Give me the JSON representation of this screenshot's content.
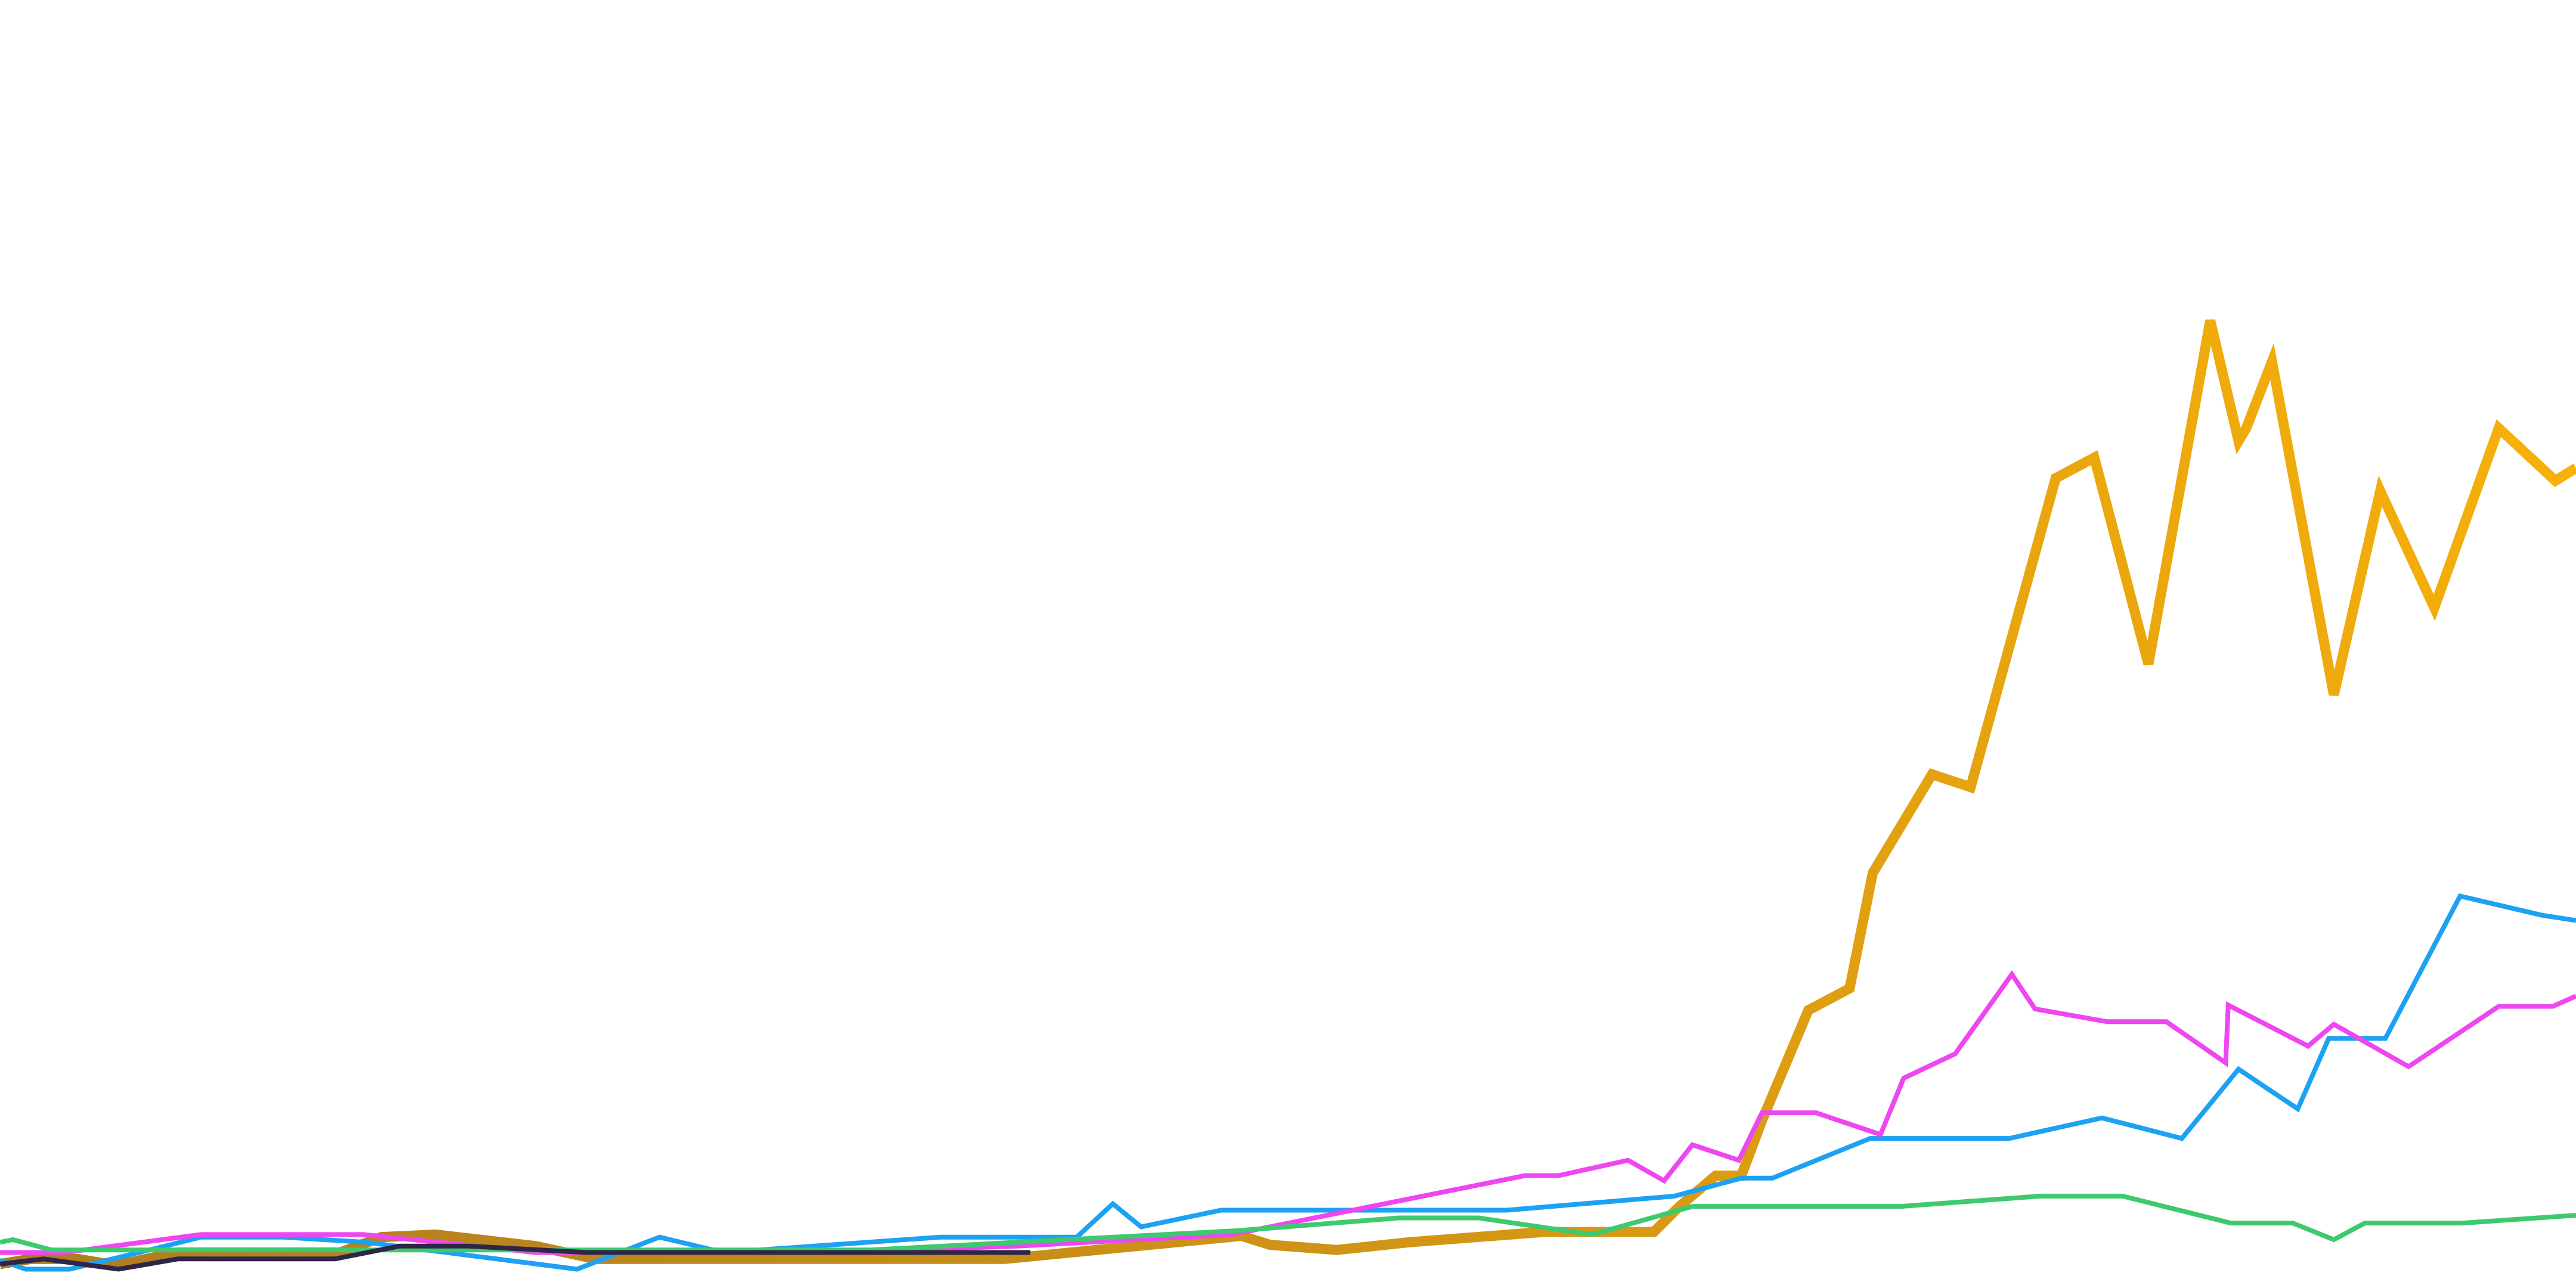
{
  "chart_data": {
    "type": "line",
    "xlim": [
      0,
      100
    ],
    "ylim": [
      0,
      100
    ],
    "grid": false,
    "legend": "none",
    "series": [
      {
        "color": "#ad7b22",
        "gradient_to": "#f9b208",
        "width": "thick",
        "x": [
          0,
          1.2,
          3.0,
          4.5,
          6.9,
          13.2,
          14.8,
          16.9,
          20.8,
          23.1,
          30.0,
          39.0,
          48.2,
          49.3,
          51.9,
          54.7,
          59.9,
          64.2,
          65.2,
          66.6,
          67.6,
          68.4,
          70.2,
          71.8,
          72.7,
          75.0,
          76.5,
          79.8,
          81.3,
          83.4,
          85.8,
          86.9,
          87.2,
          88.2,
          90.6,
          92.4,
          94.5,
          97.0,
          99.2,
          100
        ],
        "y": [
          1.4,
          1.8,
          1.8,
          1.3,
          2.3,
          2.3,
          3.5,
          3.7,
          2.8,
          1.8,
          1.8,
          1.8,
          3.6,
          2.9,
          2.5,
          3.1,
          3.9,
          3.9,
          5.9,
          8.3,
          8.3,
          12.6,
          21.2,
          22.9,
          31.9,
          39.6,
          38.6,
          62.7,
          64.3,
          48.2,
          75.0,
          65.6,
          66.6,
          71.8,
          45.8,
          61.7,
          52.6,
          66.6,
          62.5,
          63.5
        ]
      },
      {
        "color": "#1da1f2",
        "width": "normal",
        "x": [
          0,
          1.0,
          2.7,
          5.4,
          7.8,
          11.0,
          14.2,
          22.4,
          25.6,
          28.1,
          36.5,
          41.8,
          43.2,
          44.3,
          47.4,
          58.5,
          65.0,
          67.6,
          68.8,
          72.6,
          78.0,
          81.6,
          84.7,
          86.9,
          89.2,
          90.4,
          92.6,
          95.5,
          98.7,
          100
        ],
        "y": [
          1.7,
          1.0,
          1.0,
          2.3,
          3.5,
          3.5,
          3.1,
          1.0,
          3.5,
          2.3,
          3.5,
          3.5,
          6.1,
          4.3,
          5.6,
          5.6,
          6.7,
          8.1,
          8.1,
          11.2,
          11.2,
          12.8,
          11.2,
          16.6,
          13.5,
          19.0,
          19.0,
          30.1,
          28.6,
          28.2
        ]
      },
      {
        "color": "#ee46f0",
        "width": "normal",
        "x": [
          0,
          2.5,
          7.8,
          14.1,
          20.8,
          32.0,
          39.5,
          47.8,
          59.2,
          60.5,
          63.2,
          64.6,
          65.7,
          67.5,
          68.4,
          70.5,
          73.0,
          73.9,
          75.9,
          78.1,
          79.0,
          81.8,
          84.1,
          86.4,
          86.5,
          89.6,
          90.6,
          93.5,
          97.0,
          99.1,
          100
        ],
        "y": [
          2.3,
          2.3,
          3.7,
          3.7,
          2.3,
          2.3,
          2.8,
          3.7,
          8.3,
          8.3,
          9.5,
          7.9,
          10.7,
          9.5,
          13.2,
          13.2,
          11.5,
          15.9,
          17.8,
          24.0,
          21.3,
          20.3,
          20.3,
          17.1,
          21.6,
          18.4,
          20.1,
          16.8,
          21.5,
          21.5,
          22.3
        ]
      },
      {
        "color": "#3ec96f",
        "width": "normal",
        "x": [
          0,
          0.5,
          2.0,
          16.0,
          33.8,
          48.0,
          54.3,
          57.4,
          61.8,
          65.7,
          73.8,
          79.2,
          82.4,
          86.6,
          89.0,
          90.6,
          91.8,
          95.6,
          100
        ],
        "y": [
          3.1,
          3.3,
          2.5,
          2.5,
          2.5,
          4.0,
          5.0,
          5.0,
          3.7,
          5.9,
          5.9,
          6.7,
          6.7,
          4.6,
          4.6,
          3.3,
          4.6,
          4.6,
          5.2
        ]
      },
      {
        "color": "#2e2647",
        "width": "normal",
        "x": [
          0,
          1.7,
          4.6,
          6.9,
          13.0,
          14.5,
          15.5,
          18.2,
          22.8,
          40.0
        ],
        "y": [
          1.4,
          1.8,
          1.0,
          1.8,
          1.8,
          2.4,
          2.8,
          2.8,
          2.3,
          2.3
        ]
      }
    ]
  }
}
